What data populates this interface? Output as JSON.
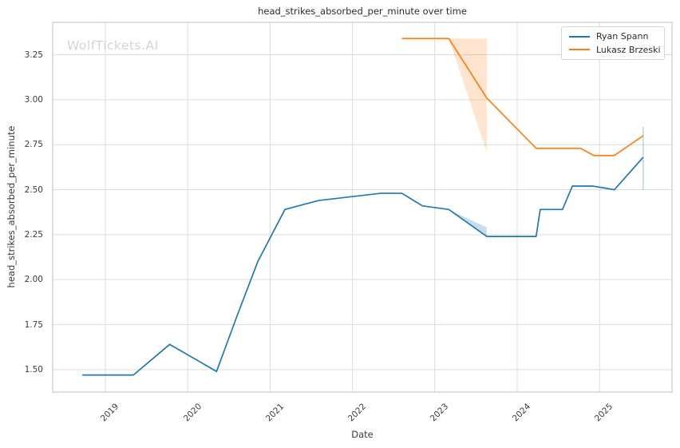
{
  "chart_data": {
    "type": "line",
    "title": "head_strikes_absorbed_per_minute over time",
    "xlabel": "Date",
    "ylabel": "head_strikes_absorbed_per_minute",
    "watermark": "WolfTickets.AI",
    "x_range": [
      2018.36,
      2025.88
    ],
    "y_range": [
      1.375,
      3.43
    ],
    "xticks": [
      2019,
      2020,
      2021,
      2022,
      2023,
      2024,
      2025
    ],
    "yticks": [
      1.5,
      1.75,
      2.0,
      2.25,
      2.5,
      2.75,
      3.0,
      3.25
    ],
    "grid": true,
    "legend_position": "upper right",
    "series": [
      {
        "name": "Ryan Spann",
        "color": "#1f77b4",
        "x": [
          2018.72,
          2019.34,
          2019.78,
          2020.35,
          2020.6,
          2020.85,
          2021.18,
          2021.59,
          2022.34,
          2022.6,
          2022.85,
          2023.17,
          2023.63,
          2024.23,
          2024.28,
          2024.55,
          2024.67,
          2024.92,
          2025.18,
          2025.53
        ],
        "y": [
          1.47,
          1.47,
          1.64,
          1.49,
          1.8,
          2.1,
          2.39,
          2.44,
          2.48,
          2.48,
          2.41,
          2.39,
          2.24,
          2.24,
          2.39,
          2.39,
          2.52,
          2.52,
          2.5,
          2.68
        ]
      },
      {
        "name": "Lukasz Brzeski",
        "color": "#ff7f0e",
        "x": [
          2022.6,
          2023.17,
          2023.63,
          2024.23,
          2024.77,
          2024.93,
          2025.18,
          2025.53
        ],
        "y": [
          3.34,
          3.34,
          3.01,
          2.73,
          2.73,
          2.69,
          2.69,
          2.8
        ]
      }
    ],
    "confidence_bands": [
      {
        "series": "Lukasz Brzeski",
        "color": "#ff7f0e",
        "opacity": 0.2,
        "polygon": [
          [
            2023.17,
            3.34
          ],
          [
            2023.63,
            3.34
          ],
          [
            2023.63,
            2.71
          ]
        ]
      },
      {
        "series": "Ryan Spann",
        "color": "#1f77b4",
        "opacity": 0.25,
        "polygon": [
          [
            2023.17,
            2.39
          ],
          [
            2023.63,
            2.29
          ],
          [
            2023.63,
            2.24
          ]
        ]
      }
    ],
    "error_bars": [
      {
        "series": "Ryan Spann",
        "color": "#1f77b4",
        "opacity": 0.35,
        "x": 2025.53,
        "y_min": 2.5,
        "y_max": 2.85
      }
    ],
    "colors": {
      "grid": "#dcdcdc",
      "spine": "#cccccc",
      "text": "#3a3a3a",
      "watermark": "#d4d4d4",
      "background": "#ffffff"
    }
  }
}
